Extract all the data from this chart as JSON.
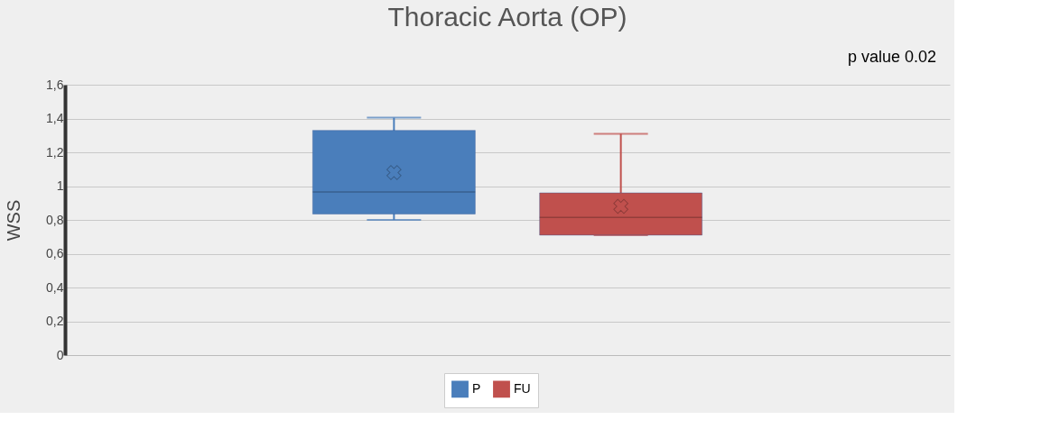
{
  "chart_data": {
    "type": "box",
    "title": "Thoracic Aorta (OP)",
    "ylabel": "WSS",
    "annotations": [
      "p value 0.02"
    ],
    "categories": [
      null
    ],
    "series": [
      {
        "name": "P",
        "color": "#4a7ebb",
        "boxes": [
          {
            "low": 0.8,
            "q1": 0.835,
            "median": 0.965,
            "q3": 1.33,
            "high": 1.405,
            "mean": 1.08
          }
        ]
      },
      {
        "name": "FU",
        "color": "#c0504d",
        "boxes": [
          {
            "low": 0.71,
            "q1": 0.71,
            "median": 0.815,
            "q3": 0.96,
            "high": 1.31,
            "mean": 0.88
          }
        ]
      }
    ],
    "ylim": [
      0,
      1.6
    ],
    "yticks": [
      0,
      {
        "value": 0.2,
        "label": "0,2"
      },
      {
        "value": 0.4,
        "label": "0,4"
      },
      {
        "value": 0.6,
        "label": "0,6"
      },
      {
        "value": 0.8,
        "label": "0,8"
      },
      1,
      {
        "value": 1.2,
        "label": "1,2"
      },
      {
        "value": 1.4,
        "label": "1,4"
      },
      {
        "value": 1.6,
        "label": "1,6"
      }
    ],
    "grid": "y",
    "legend": "bottom",
    "marker": "cross"
  }
}
